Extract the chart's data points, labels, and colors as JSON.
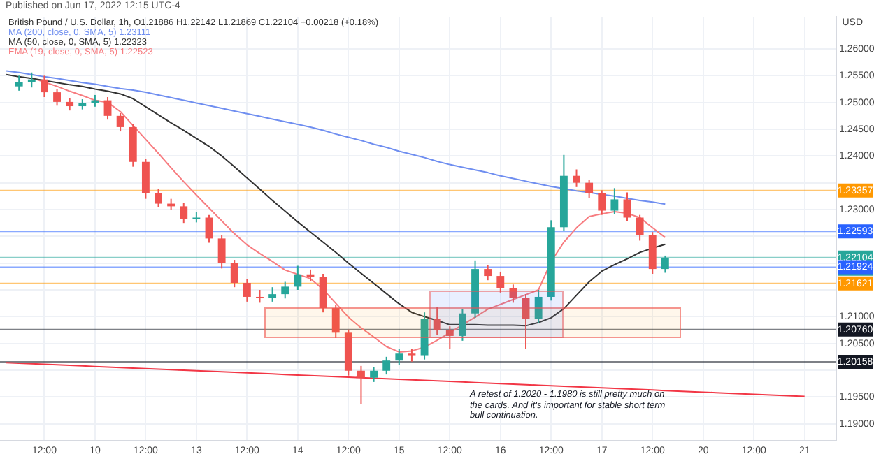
{
  "chart_data": {
    "type": "candlestick",
    "subtitle": "Published on Jun 17, 2022 12:15 UTC-4",
    "title": "British Pound / U.S. Dollar, 1h, O1.21886 H1.22142 L1.21869 C1.22104 +0.00218 (+0.18%)",
    "ylabel": "USD",
    "categories": [
      null,
      null,
      null,
      "12:00",
      null,
      null,
      null,
      "10",
      null,
      null,
      null,
      "12:00",
      null,
      null,
      null,
      "13",
      null,
      null,
      null,
      "12:00",
      null,
      null,
      null,
      "14",
      null,
      null,
      null,
      "12:00",
      null,
      null,
      null,
      "15",
      null,
      null,
      null,
      "12:00",
      null,
      null,
      null,
      "16",
      null,
      null,
      null,
      "12:00",
      null,
      null,
      null,
      "17",
      null,
      null,
      null,
      "12:00",
      null,
      null,
      null,
      "20",
      null,
      null,
      null,
      "12:00",
      null,
      null,
      null,
      "21",
      null,
      null
    ],
    "ohlc": [
      null,
      [
        1.253,
        1.255,
        1.2522,
        1.2538
      ],
      [
        1.2538,
        1.2556,
        1.2528,
        1.2543
      ],
      [
        1.2543,
        1.255,
        1.251,
        1.2519
      ],
      [
        1.2519,
        1.2525,
        1.2494,
        1.2501
      ],
      [
        1.2501,
        1.2508,
        1.2485,
        1.2493
      ],
      [
        1.2493,
        1.2506,
        1.2487,
        1.2499
      ],
      [
        1.2499,
        1.2514,
        1.2492,
        1.2504
      ],
      [
        1.2504,
        1.251,
        1.2468,
        1.2475
      ],
      [
        1.2475,
        1.248,
        1.2446,
        1.2454
      ],
      [
        1.2454,
        1.246,
        1.238,
        1.2389
      ],
      [
        1.2389,
        1.2395,
        1.232,
        1.233
      ],
      [
        1.233,
        1.2338,
        1.2304,
        1.2311
      ],
      [
        1.2311,
        1.232,
        1.23,
        1.2306
      ],
      [
        1.2306,
        1.2312,
        1.2275,
        1.2283
      ],
      [
        1.2283,
        1.2296,
        1.2276,
        1.2285
      ],
      [
        1.2285,
        1.229,
        1.2238,
        1.2246
      ],
      [
        1.2246,
        1.2252,
        1.219,
        1.22
      ],
      [
        1.22,
        1.2206,
        1.2155,
        1.2163
      ],
      [
        1.2163,
        1.217,
        1.2128,
        1.2137
      ],
      [
        1.2137,
        1.215,
        1.2126,
        1.2135
      ],
      [
        1.2135,
        1.2155,
        1.2128,
        1.2142
      ],
      [
        1.2142,
        1.2165,
        1.2134,
        1.2156
      ],
      [
        1.2156,
        1.2195,
        1.215,
        1.2179
      ],
      [
        1.2179,
        1.2188,
        1.2166,
        1.2174
      ],
      [
        1.2174,
        1.218,
        1.2108,
        1.2116
      ],
      [
        1.2116,
        1.2122,
        1.206,
        1.207
      ],
      [
        1.207,
        1.2076,
        1.199,
        1.1999
      ],
      [
        1.1999,
        1.2008,
        1.1937,
        1.1986
      ],
      [
        1.1986,
        1.2006,
        1.1978,
        1.1999
      ],
      [
        1.1999,
        1.2025,
        1.1992,
        1.2018
      ],
      [
        1.2018,
        1.204,
        1.201,
        1.2031
      ],
      [
        1.2031,
        1.204,
        1.2016,
        1.2028
      ],
      [
        1.2028,
        1.2108,
        1.202,
        1.2096
      ],
      [
        1.2096,
        1.2118,
        1.2066,
        1.2075
      ],
      [
        1.2075,
        1.2082,
        1.204,
        1.2064
      ],
      [
        1.2064,
        1.2114,
        1.2055,
        1.2106
      ],
      [
        1.2106,
        1.2205,
        1.2098,
        1.2189
      ],
      [
        1.2189,
        1.2196,
        1.2168,
        1.2176
      ],
      [
        1.2176,
        1.2184,
        1.2145,
        1.2153
      ],
      [
        1.2153,
        1.216,
        1.2126,
        1.2135
      ],
      [
        1.2135,
        1.2142,
        1.204,
        1.2096
      ],
      [
        1.2096,
        1.215,
        1.2088,
        1.2137
      ],
      [
        1.2137,
        1.228,
        1.213,
        1.2267
      ],
      [
        1.2267,
        1.2402,
        1.226,
        1.2363
      ],
      [
        1.2363,
        1.2375,
        1.2342,
        1.235
      ],
      [
        1.235,
        1.2356,
        1.2322,
        1.233
      ],
      [
        1.233,
        1.2336,
        1.229,
        1.2298
      ],
      [
        1.2298,
        1.234,
        1.2292,
        1.2319
      ],
      [
        1.2319,
        1.2332,
        1.2278,
        1.2285
      ],
      [
        1.2285,
        1.229,
        1.2242,
        1.2252
      ],
      [
        1.2252,
        1.2258,
        1.218,
        1.2189
      ],
      [
        1.2189,
        1.2214,
        1.2182,
        1.221
      ],
      null,
      null,
      null,
      null,
      null,
      null,
      null,
      null,
      null,
      null,
      null,
      null,
      null
    ],
    "series": [
      {
        "name": "MA (200, close, 0, SMA, 5) 1.23111",
        "type": "line",
        "color": "#6f8ef0",
        "values": [
          1.2559,
          1.2556,
          1.2552,
          1.2548,
          1.2545,
          1.2541,
          1.2537,
          1.2534,
          1.253,
          1.2526,
          1.2523,
          1.2519,
          1.2514,
          1.2509,
          1.2504,
          1.2499,
          1.2494,
          1.2489,
          1.2484,
          1.2479,
          1.2474,
          1.2469,
          1.2464,
          1.2459,
          1.2454,
          1.2448,
          1.2441,
          1.2435,
          1.2429,
          1.2422,
          1.2416,
          1.2409,
          1.2403,
          1.2397,
          1.239,
          1.2384,
          1.2379,
          1.2374,
          1.2369,
          1.2363,
          1.2358,
          1.2353,
          1.2348,
          1.2343,
          1.2339,
          1.2335,
          1.2332,
          1.2328,
          1.2325,
          1.2321,
          1.2317,
          1.2314,
          1.231,
          null,
          null,
          null,
          null,
          null,
          null,
          null,
          null,
          null,
          null,
          null,
          null,
          null
        ]
      },
      {
        "name": "MA (50, close, 0, SMA, 5) 1.22323",
        "type": "line",
        "color": "#333333",
        "values": [
          1.2552,
          1.2548,
          1.2545,
          1.2541,
          1.2537,
          1.2533,
          1.253,
          1.2525,
          1.2521,
          1.2516,
          1.2507,
          1.2492,
          1.2477,
          1.2462,
          1.2448,
          1.2433,
          1.2418,
          1.24,
          1.238,
          1.2359,
          1.2338,
          1.2317,
          1.2297,
          1.2277,
          1.2258,
          1.2239,
          1.222,
          1.22,
          1.2181,
          1.2162,
          1.2143,
          1.2124,
          1.2108,
          1.21,
          1.2093,
          1.2085,
          1.2085,
          1.2085,
          1.2084,
          1.2084,
          1.2084,
          1.2083,
          1.2089,
          1.2098,
          1.2115,
          1.214,
          1.2165,
          1.2185,
          1.2197,
          1.2208,
          1.222,
          1.2228,
          1.2235,
          null,
          null,
          null,
          null,
          null,
          null,
          null,
          null,
          null,
          null,
          null,
          null,
          null
        ]
      },
      {
        "name": "EMA (19, close, 0, SMA, 5) 1.22523",
        "type": "line",
        "color": "#f77c80",
        "values": [
          null,
          null,
          1.2546,
          1.2538,
          1.253,
          1.2521,
          1.2513,
          1.2504,
          1.25,
          1.2483,
          1.2457,
          1.2431,
          1.2405,
          1.2378,
          1.2352,
          1.2327,
          1.2303,
          1.2279,
          1.2255,
          1.2234,
          1.2218,
          1.2203,
          1.2187,
          1.2179,
          1.2171,
          1.2151,
          1.2125,
          1.2099,
          1.2079,
          1.2062,
          1.2044,
          1.2034,
          1.2036,
          1.2043,
          1.2056,
          1.207,
          1.2085,
          1.2099,
          1.2114,
          1.2123,
          1.2132,
          1.2141,
          1.215,
          1.2203,
          1.2239,
          1.2266,
          1.2287,
          1.2292,
          1.2296,
          1.2293,
          1.2285,
          1.2266,
          1.2248,
          null,
          null,
          null,
          null,
          null,
          null,
          null,
          null,
          null,
          null,
          null,
          null,
          null
        ]
      },
      {
        "type": "line",
        "color": "#f23645",
        "values": [
          1.2014,
          1.2013,
          1.2012,
          1.2011,
          1.201,
          1.2009,
          1.2008,
          1.2007,
          1.2006,
          1.2005,
          1.2004,
          1.2003,
          1.2002,
          1.2001,
          1.2,
          1.1999,
          1.1998,
          1.1997,
          1.1996,
          1.1995,
          1.1994,
          1.1993,
          1.1992,
          1.1991,
          1.199,
          1.1989,
          1.1988,
          1.1987,
          1.1986,
          1.1985,
          1.1984,
          1.1983,
          1.1982,
          1.1981,
          1.198,
          1.1979,
          1.1978,
          1.1977,
          1.1976,
          1.1975,
          1.1974,
          1.1973,
          1.1972,
          1.1971,
          1.197,
          1.1969,
          1.1968,
          1.1967,
          1.1966,
          1.1965,
          1.1964,
          1.1963,
          1.1962,
          1.1961,
          1.196,
          1.1959,
          1.1958,
          1.1957,
          1.1956,
          1.1955,
          1.1954,
          1.1953,
          1.1952,
          1.1951,
          null,
          null
        ]
      }
    ],
    "ref_lines": [
      {
        "axis": "y",
        "value": 1.23357,
        "label": "1.23357",
        "color": "#ff9800"
      },
      {
        "axis": "y",
        "value": 1.22593,
        "label": "1.22593",
        "color": "#2962ff"
      },
      {
        "axis": "y",
        "value": 1.22104,
        "label": "1.22104\n44:40",
        "color": "#26a69a"
      },
      {
        "axis": "y",
        "value": 1.21924,
        "label": "1.21924",
        "color": "#2962ff"
      },
      {
        "axis": "y",
        "value": 1.21621,
        "label": "1.21621",
        "color": "#ff9800"
      },
      {
        "axis": "y",
        "value": 1.2076,
        "label": "1.20760",
        "color": "#131722"
      },
      {
        "axis": "y",
        "value": 1.20158,
        "label": "1.20158",
        "color": "#131722"
      }
    ],
    "annotations": [
      "A retest of 1.2020 - 1.1980 is still pretty much on the cards. And it's important for stable short term  bull continuation."
    ],
    "ylim": [
      1.1868,
      1.266
    ],
    "yticks": [
      {
        "value": 1.19,
        "label": "1.19000"
      },
      {
        "value": 1.195,
        "label": "1.19500"
      },
      {
        "value": 1.2,
        "label": null
      },
      {
        "value": 1.205,
        "label": "1.20500"
      },
      {
        "value": 1.21,
        "label": "1.21000"
      },
      {
        "value": 1.215,
        "label": null
      },
      {
        "value": 1.22,
        "label": null
      },
      {
        "value": 1.225,
        "label": null
      },
      {
        "value": 1.23,
        "label": "1.23000"
      },
      {
        "value": 1.235,
        "label": null
      },
      {
        "value": 1.24,
        "label": "1.24000"
      },
      {
        "value": 1.245,
        "label": "1.24500"
      },
      {
        "value": 1.25,
        "label": "1.25000"
      },
      {
        "value": 1.255,
        "label": "1.25500"
      },
      {
        "value": 1.26,
        "label": "1.26000"
      }
    ],
    "grid": true,
    "legend": "top left",
    "marker": "none"
  }
}
